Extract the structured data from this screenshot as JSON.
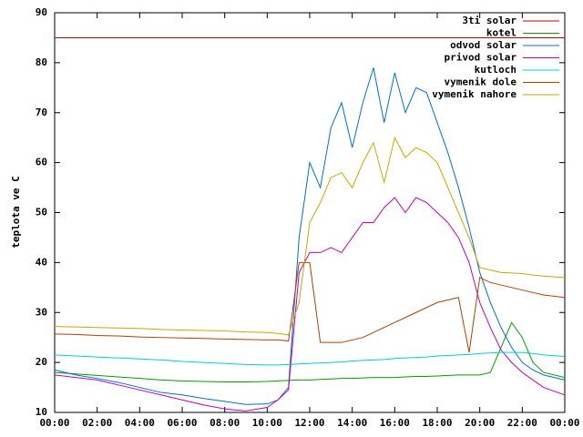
{
  "chart_data": {
    "type": "line",
    "ylabel": "teplota ve C",
    "x": [
      0,
      1,
      2,
      3,
      4,
      5,
      6,
      7,
      8,
      9,
      10,
      10.5,
      11,
      11.5,
      12,
      12.5,
      13,
      13.5,
      14,
      14.5,
      15,
      15.5,
      16,
      16.5,
      17,
      17.5,
      18,
      18.5,
      19,
      19.5,
      20,
      20.5,
      21,
      21.5,
      22,
      22.5,
      23,
      24
    ],
    "xlim": [
      0,
      24
    ],
    "xticks": [
      {
        "value": 0,
        "label": "00:00"
      },
      {
        "value": 2,
        "label": "02:00"
      },
      {
        "value": 4,
        "label": "04:00"
      },
      {
        "value": 6,
        "label": "06:00"
      },
      {
        "value": 8,
        "label": "08:00"
      },
      {
        "value": 10,
        "label": "10:00"
      },
      {
        "value": 12,
        "label": "12:00"
      },
      {
        "value": 14,
        "label": "14:00"
      },
      {
        "value": 16,
        "label": "16:00"
      },
      {
        "value": 18,
        "label": "18:00"
      },
      {
        "value": 20,
        "label": "20:00"
      },
      {
        "value": 22,
        "label": "22:00"
      },
      {
        "value": 24,
        "label": "00:00"
      }
    ],
    "ylim": [
      10,
      90
    ],
    "yticks": [
      10,
      20,
      30,
      40,
      50,
      60,
      70,
      80,
      90
    ],
    "grid": false,
    "legend": "top-right",
    "series": [
      {
        "name": "3ti solar",
        "color": "#c00000",
        "values": [
          85,
          85,
          85,
          85,
          85,
          85,
          85,
          85,
          85,
          85,
          85,
          85,
          85,
          85,
          85,
          85,
          85,
          85,
          85,
          85,
          85,
          85,
          85,
          85,
          85,
          85,
          85,
          85,
          85,
          85,
          85,
          85,
          85,
          85,
          85,
          85,
          85,
          85
        ]
      },
      {
        "name": "kotel",
        "color": "#00a000",
        "values": [
          18,
          17.7,
          17.4,
          17.1,
          16.8,
          16.5,
          16.3,
          16.2,
          16.1,
          16.1,
          16.2,
          16.3,
          16.4,
          16.5,
          16.5,
          16.6,
          16.7,
          16.8,
          16.8,
          16.9,
          17,
          17,
          17,
          17.1,
          17.2,
          17.2,
          17.3,
          17.4,
          17.5,
          17.5,
          17.5,
          18,
          23,
          28,
          25,
          20,
          18,
          17
        ]
      },
      {
        "name": "odvod solar",
        "color": "#0070d0",
        "values": [
          18.5,
          17.5,
          16.8,
          16,
          15,
          14,
          13.5,
          12.8,
          12.2,
          11.6,
          11.7,
          12.5,
          15,
          45,
          60,
          55,
          67,
          72,
          63,
          72,
          79,
          68,
          78,
          70,
          75,
          74,
          68,
          62,
          55,
          47,
          38,
          32,
          27,
          23,
          20,
          18.5,
          17.5,
          16.5
        ]
      },
      {
        "name": "privod solar",
        "color": "#c000c0",
        "values": [
          17.5,
          17,
          16.5,
          15.5,
          14.5,
          13.5,
          12.5,
          11.5,
          10.7,
          10.3,
          11,
          12.5,
          14.5,
          38,
          42,
          42,
          43,
          42,
          45,
          48,
          48,
          51,
          53,
          50,
          53,
          52,
          50,
          48,
          45,
          40,
          32,
          27,
          22.5,
          20,
          18,
          16.5,
          15,
          13.5
        ]
      },
      {
        "name": "kutloch",
        "color": "#00d0d0",
        "values": [
          21.5,
          21.3,
          21.1,
          20.9,
          20.7,
          20.5,
          20.2,
          20,
          19.8,
          19.6,
          19.5,
          19.5,
          19.6,
          19.7,
          19.8,
          19.9,
          20,
          20.1,
          20.3,
          20.4,
          20.5,
          20.6,
          20.8,
          20.9,
          21,
          21.1,
          21.3,
          21.4,
          21.5,
          21.6,
          21.8,
          21.9,
          22,
          22,
          22,
          21.8,
          21.5,
          21.2
        ]
      },
      {
        "name": "vymenik dole",
        "color": "#b04000",
        "values": [
          25.7,
          25.6,
          25.4,
          25.3,
          25.1,
          25,
          24.9,
          24.8,
          24.7,
          24.6,
          24.5,
          24.5,
          24.3,
          40,
          40,
          24,
          24,
          24,
          24.5,
          25,
          26,
          27,
          28,
          29,
          30,
          31,
          32,
          32.5,
          33,
          22,
          37,
          36,
          35.5,
          35,
          34.5,
          34,
          33.5,
          33
        ]
      },
      {
        "name": "vymenik nahore",
        "color": "#c8a800",
        "values": [
          27.2,
          27.1,
          27,
          26.9,
          26.8,
          26.6,
          26.5,
          26.4,
          26.3,
          26.1,
          26,
          25.8,
          25.5,
          32,
          48,
          52,
          57,
          58,
          55,
          60,
          64,
          56,
          65,
          61,
          63,
          62,
          60,
          55,
          50,
          45,
          39,
          38.5,
          38,
          37.9,
          37.8,
          37.5,
          37.3,
          37
        ]
      }
    ]
  }
}
